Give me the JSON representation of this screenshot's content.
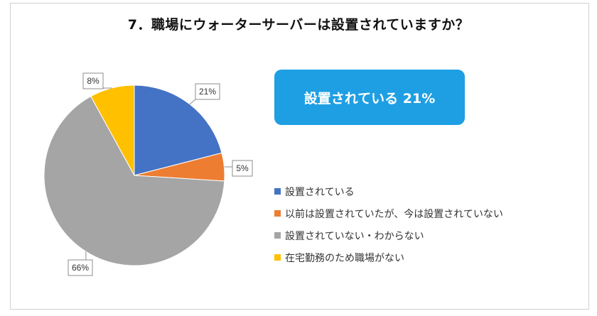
{
  "title": "7．職場にウォーターサーバーは設置されていますか？",
  "callout": {
    "text": "設置されている 21%",
    "color": "#1e9fe3"
  },
  "chart_data": {
    "type": "pie",
    "title": "7．職場にウォーターサーバーは設置されていますか？",
    "legend_position": "right",
    "slices": [
      {
        "label": "設置されている",
        "value": 21,
        "value_label": "21%",
        "color": "#4472c4"
      },
      {
        "label": "以前は設置されていたが、今は設置されていない",
        "value": 5,
        "value_label": "5%",
        "color": "#ed7d31"
      },
      {
        "label": "設置されていない・わからない",
        "value": 66,
        "value_label": "66%",
        "color": "#a5a5a5"
      },
      {
        "label": "在宅勤務のため職場がない",
        "value": 8,
        "value_label": "8%",
        "color": "#ffc000"
      }
    ]
  }
}
